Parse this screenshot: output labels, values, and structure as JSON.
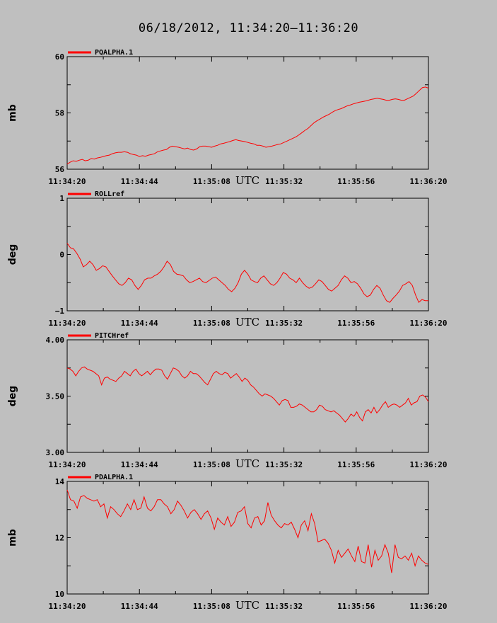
{
  "title": "06/18/2012, 11:34:20–11:36:20",
  "colors": {
    "background": "#bfbfbf",
    "series": "#ff0000",
    "axis": "#000000"
  },
  "chart_data": [
    {
      "type": "line",
      "legend": "PQALPHA.1",
      "ylabel": "mb",
      "xlabel": "UTC",
      "ylim": [
        56,
        60
      ],
      "yticks": [
        "56",
        "58",
        "60"
      ],
      "xticks": [
        "11:34:20",
        "11:34:44",
        "11:35:08",
        "11:35:32",
        "11:35:56",
        "11:36:20"
      ],
      "x_range_seconds": [
        0,
        120
      ],
      "values": [
        56.18,
        56.25,
        56.3,
        56.28,
        56.32,
        56.35,
        56.3,
        56.32,
        56.38,
        56.36,
        56.4,
        56.42,
        56.45,
        56.48,
        56.5,
        56.55,
        56.58,
        56.6,
        56.6,
        56.62,
        56.6,
        56.55,
        56.52,
        56.5,
        56.45,
        56.48,
        56.46,
        56.5,
        56.52,
        56.55,
        56.62,
        56.65,
        56.68,
        56.7,
        56.78,
        56.82,
        56.8,
        56.78,
        56.75,
        56.72,
        56.75,
        56.7,
        56.68,
        56.72,
        56.8,
        56.82,
        56.82,
        56.8,
        56.78,
        56.82,
        56.85,
        56.9,
        56.92,
        56.95,
        56.98,
        57.02,
        57.05,
        57.02,
        57.0,
        56.98,
        56.95,
        56.92,
        56.9,
        56.85,
        56.85,
        56.82,
        56.78,
        56.8,
        56.82,
        56.85,
        56.88,
        56.9,
        56.95,
        57.0,
        57.05,
        57.1,
        57.15,
        57.22,
        57.3,
        57.38,
        57.45,
        57.55,
        57.65,
        57.72,
        57.78,
        57.85,
        57.9,
        57.95,
        58.02,
        58.08,
        58.12,
        58.15,
        58.2,
        58.25,
        58.28,
        58.32,
        58.35,
        58.38,
        58.4,
        58.42,
        58.45,
        58.48,
        58.5,
        58.52,
        58.5,
        58.48,
        58.45,
        58.45,
        58.48,
        58.5,
        58.48,
        58.45,
        58.45,
        58.5,
        58.55,
        58.6,
        58.7,
        58.8,
        58.9,
        58.92,
        58.88
      ]
    },
    {
      "type": "line",
      "legend": "ROLLref",
      "ylabel": "deg",
      "xlabel": "UTC",
      "ylim": [
        -1,
        1
      ],
      "yticks": [
        "−1",
        "0",
        "1"
      ],
      "xticks": [
        "11:34:20",
        "11:34:44",
        "11:35:08",
        "11:35:32",
        "11:35:56",
        "11:36:20"
      ],
      "x_range_seconds": [
        0,
        120
      ],
      "values": [
        0.2,
        0.12,
        0.1,
        0.02,
        -0.08,
        -0.22,
        -0.18,
        -0.12,
        -0.18,
        -0.28,
        -0.25,
        -0.2,
        -0.22,
        -0.3,
        -0.38,
        -0.45,
        -0.52,
        -0.55,
        -0.5,
        -0.42,
        -0.45,
        -0.55,
        -0.62,
        -0.55,
        -0.45,
        -0.42,
        -0.42,
        -0.38,
        -0.35,
        -0.3,
        -0.22,
        -0.12,
        -0.18,
        -0.3,
        -0.35,
        -0.36,
        -0.38,
        -0.45,
        -0.5,
        -0.48,
        -0.45,
        -0.42,
        -0.48,
        -0.5,
        -0.46,
        -0.42,
        -0.4,
        -0.45,
        -0.5,
        -0.55,
        -0.62,
        -0.66,
        -0.6,
        -0.5,
        -0.35,
        -0.28,
        -0.35,
        -0.45,
        -0.48,
        -0.5,
        -0.42,
        -0.38,
        -0.45,
        -0.52,
        -0.55,
        -0.5,
        -0.42,
        -0.32,
        -0.35,
        -0.42,
        -0.45,
        -0.5,
        -0.42,
        -0.5,
        -0.56,
        -0.6,
        -0.58,
        -0.52,
        -0.45,
        -0.48,
        -0.55,
        -0.62,
        -0.65,
        -0.6,
        -0.55,
        -0.45,
        -0.38,
        -0.42,
        -0.5,
        -0.48,
        -0.52,
        -0.6,
        -0.7,
        -0.75,
        -0.72,
        -0.62,
        -0.55,
        -0.6,
        -0.72,
        -0.82,
        -0.85,
        -0.78,
        -0.72,
        -0.65,
        -0.55,
        -0.52,
        -0.48,
        -0.55,
        -0.72,
        -0.85,
        -0.8,
        -0.82,
        -0.82
      ]
    },
    {
      "type": "line",
      "legend": "PITCHref",
      "ylabel": "deg",
      "xlabel": "UTC",
      "ylim": [
        3.0,
        4.0
      ],
      "yticks": [
        "3.00",
        "3.50",
        "4.00"
      ],
      "xticks": [
        "11:34:20",
        "11:34:44",
        "11:35:08",
        "11:35:32",
        "11:35:56",
        "11:36:20"
      ],
      "x_range_seconds": [
        0,
        120
      ],
      "values": [
        3.75,
        3.74,
        3.72,
        3.68,
        3.72,
        3.75,
        3.76,
        3.74,
        3.73,
        3.72,
        3.7,
        3.68,
        3.6,
        3.66,
        3.67,
        3.65,
        3.64,
        3.63,
        3.66,
        3.68,
        3.72,
        3.7,
        3.68,
        3.72,
        3.74,
        3.7,
        3.68,
        3.7,
        3.72,
        3.69,
        3.72,
        3.74,
        3.74,
        3.73,
        3.68,
        3.65,
        3.7,
        3.75,
        3.74,
        3.72,
        3.68,
        3.66,
        3.68,
        3.72,
        3.7,
        3.7,
        3.68,
        3.65,
        3.62,
        3.6,
        3.65,
        3.7,
        3.72,
        3.7,
        3.69,
        3.71,
        3.7,
        3.66,
        3.68,
        3.7,
        3.67,
        3.63,
        3.66,
        3.64,
        3.6,
        3.58,
        3.55,
        3.52,
        3.5,
        3.52,
        3.51,
        3.5,
        3.48,
        3.45,
        3.42,
        3.46,
        3.47,
        3.46,
        3.4,
        3.4,
        3.41,
        3.43,
        3.42,
        3.4,
        3.38,
        3.36,
        3.36,
        3.38,
        3.42,
        3.41,
        3.38,
        3.37,
        3.36,
        3.37,
        3.35,
        3.33,
        3.3,
        3.27,
        3.3,
        3.34,
        3.32,
        3.36,
        3.31,
        3.28,
        3.36,
        3.38,
        3.35,
        3.4,
        3.35,
        3.38,
        3.42,
        3.45,
        3.4,
        3.42,
        3.43,
        3.42,
        3.4,
        3.42,
        3.44,
        3.48,
        3.42,
        3.44,
        3.45,
        3.5,
        3.51,
        3.49,
        3.45
      ]
    },
    {
      "type": "line",
      "legend": "PDALPHA.1",
      "ylabel": "mb",
      "xlabel": "UTC",
      "ylim": [
        10,
        14
      ],
      "yticks": [
        "10",
        "12",
        "14"
      ],
      "xticks": [
        "11:34:20",
        "11:34:44",
        "11:35:08",
        "11:35:32",
        "11:35:56",
        "11:36:20"
      ],
      "x_range_seconds": [
        0,
        120
      ],
      "values": [
        13.7,
        13.35,
        13.3,
        13.05,
        13.45,
        13.5,
        13.4,
        13.35,
        13.3,
        13.35,
        13.1,
        13.2,
        12.7,
        13.1,
        13.0,
        12.85,
        12.75,
        12.95,
        13.2,
        13.0,
        13.35,
        13.0,
        13.05,
        13.45,
        13.05,
        12.95,
        13.1,
        13.35,
        13.35,
        13.2,
        13.1,
        12.85,
        13.0,
        13.3,
        13.15,
        12.95,
        12.7,
        12.9,
        13.0,
        12.85,
        12.65,
        12.85,
        12.95,
        12.7,
        12.3,
        12.7,
        12.55,
        12.45,
        12.75,
        12.4,
        12.55,
        12.9,
        12.95,
        13.1,
        12.5,
        12.35,
        12.7,
        12.75,
        12.45,
        12.6,
        13.25,
        12.8,
        12.6,
        12.45,
        12.35,
        12.5,
        12.45,
        12.55,
        12.3,
        12.0,
        12.45,
        12.6,
        12.25,
        12.85,
        12.5,
        11.85,
        11.9,
        11.95,
        11.8,
        11.55,
        11.1,
        11.55,
        11.3,
        11.45,
        11.6,
        11.35,
        11.15,
        11.7,
        11.15,
        11.1,
        11.75,
        10.95,
        11.55,
        11.2,
        11.35,
        11.75,
        11.45,
        10.75,
        11.75,
        11.3,
        11.25,
        11.35,
        11.2,
        11.45,
        11.0,
        11.35,
        11.2,
        11.1,
        11.05
      ]
    }
  ]
}
